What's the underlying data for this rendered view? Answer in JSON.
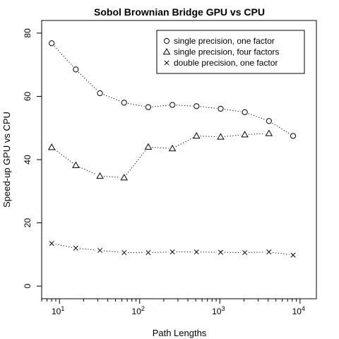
{
  "chart_data": {
    "type": "line",
    "title": "Sobol Brownian Bridge GPU vs CPU",
    "xlabel": "Path Lengths",
    "ylabel": "Speed-up GPU vs CPU",
    "x_scale": "log",
    "xlim": [
      6,
      16000
    ],
    "ylim": [
      -4,
      84
    ],
    "x_ticks": [
      {
        "value": 10,
        "base": "10",
        "exp": "1"
      },
      {
        "value": 100,
        "base": "10",
        "exp": "2"
      },
      {
        "value": 1000,
        "base": "10",
        "exp": "3"
      },
      {
        "value": 10000,
        "base": "10",
        "exp": "4"
      }
    ],
    "y_ticks": [
      {
        "value": 0,
        "label": "0"
      },
      {
        "value": 20,
        "label": "20"
      },
      {
        "value": 40,
        "label": "40"
      },
      {
        "value": 60,
        "label": "60"
      },
      {
        "value": 80,
        "label": "80"
      }
    ],
    "x": [
      8,
      16,
      32,
      64,
      128,
      256,
      512,
      1024,
      2048,
      4096,
      8192
    ],
    "series": [
      {
        "name": "single precision, one factor",
        "marker": "circle",
        "values": [
          76.8,
          68.5,
          61.0,
          58.0,
          56.6,
          57.3,
          56.9,
          56.1,
          55.0,
          52.2,
          47.5
        ]
      },
      {
        "name": "single precision, four factors",
        "marker": "triangle",
        "values": [
          43.9,
          38.2,
          34.8,
          34.3,
          44.0,
          43.5,
          47.5,
          47.2,
          47.9,
          48.3,
          null
        ]
      },
      {
        "name": "double precision, one factor",
        "marker": "cross",
        "values": [
          13.5,
          12.0,
          11.3,
          10.6,
          10.6,
          10.8,
          10.8,
          10.7,
          10.6,
          10.8,
          9.8
        ]
      }
    ],
    "line_style": "dotted",
    "legend_position": "top-right",
    "grid": false
  }
}
